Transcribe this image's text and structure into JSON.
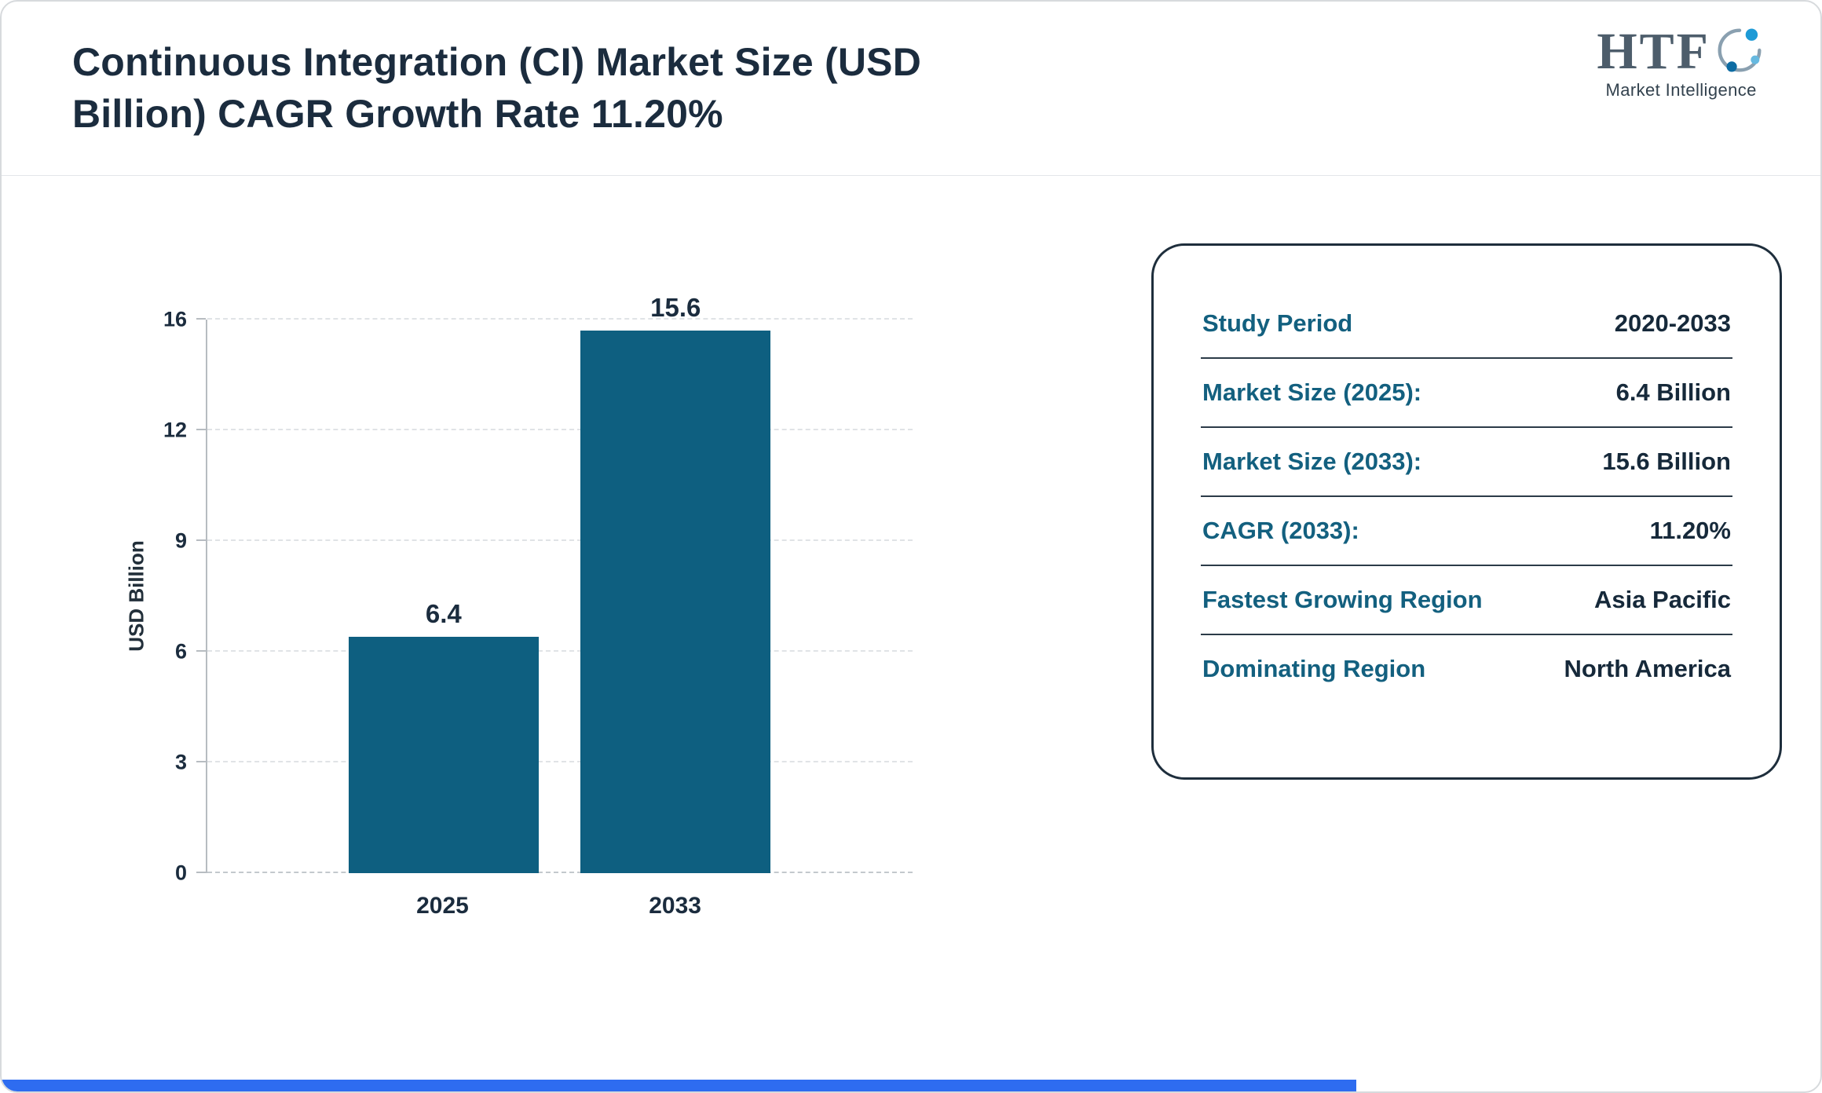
{
  "header": {
    "title": "Continuous Integration (CI) Market Size (USD Billion) CAGR Growth Rate 11.20%",
    "logo": {
      "text": "HTF",
      "subtext": "Market Intelligence",
      "icon": "people-swoosh-icon"
    }
  },
  "chart_data": {
    "type": "bar",
    "title": "Continuous Integration (CI) Market Size (USD Billion) CAGR Growth Rate 11.20%",
    "categories": [
      "2025",
      "2033"
    ],
    "values": [
      6.4,
      15.6
    ],
    "labels": [
      "6.4",
      "15.6"
    ],
    "xlabel": "",
    "ylabel": "USD Billion",
    "yticks": [
      0,
      3,
      6,
      9,
      12,
      16
    ],
    "ylim": [
      0,
      16
    ],
    "grid": "horizontal-dashed",
    "legend": "none",
    "bar_color": "#0e5f80"
  },
  "summary_card": {
    "rows": [
      {
        "label": "Study Period",
        "value": "2020-2033"
      },
      {
        "label": "Market Size (2025):",
        "value": "6.4 Billion"
      },
      {
        "label": "Market Size (2033):",
        "value": "15.6 Billion"
      },
      {
        "label": "CAGR (2033):",
        "value": "11.20%"
      },
      {
        "label": "Fastest Growing Region",
        "value": "Asia Pacific"
      },
      {
        "label": "Dominating Region",
        "value": "North America"
      }
    ]
  },
  "colors": {
    "bar": "#0e5f80",
    "title": "#1b2c3e",
    "card_label": "#13607f",
    "card_value": "#16293a",
    "footer_strip": "#2e6cf0"
  }
}
